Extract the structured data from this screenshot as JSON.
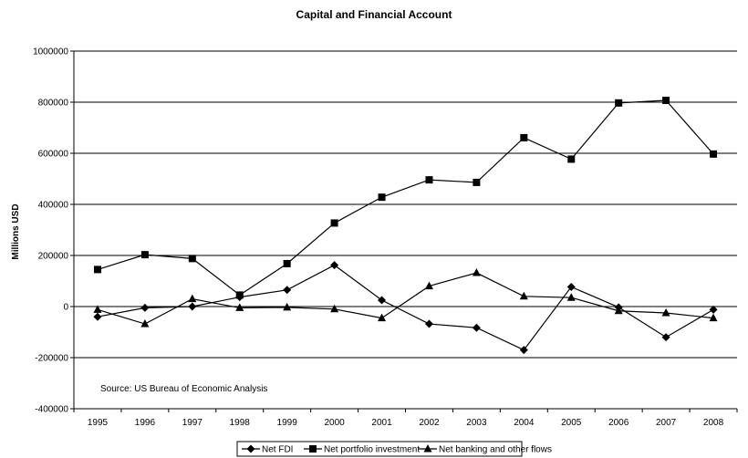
{
  "chart_data": {
    "type": "line",
    "title": "Capital and Financial Account",
    "xlabel": "",
    "ylabel": "Millions USD",
    "categories": [
      "1995",
      "1996",
      "1997",
      "1998",
      "1999",
      "2000",
      "2001",
      "2002",
      "2003",
      "2004",
      "2005",
      "2006",
      "2007",
      "2008"
    ],
    "ylim": [
      -400000,
      1000000
    ],
    "yticks": [
      -400000,
      -200000,
      0,
      200000,
      400000,
      600000,
      800000,
      1000000
    ],
    "ytick_labels": [
      "-400000",
      "-200000",
      "0",
      "200000",
      "400000",
      "600000",
      "800000",
      "1000000"
    ],
    "grid": "horizontal",
    "legend_position": "bottom",
    "annotation": "Source: US Bureau of Economic Analysis",
    "series": [
      {
        "name": "Net FDI",
        "marker": "diamond",
        "values": [
          -40000,
          -5000,
          0,
          37000,
          65000,
          162000,
          25000,
          -68000,
          -83000,
          -170000,
          77000,
          -3000,
          -120000,
          -12000
        ]
      },
      {
        "name": "Net portfolio investment",
        "marker": "square",
        "values": [
          145000,
          203000,
          188000,
          45000,
          168000,
          327000,
          428000,
          496000,
          486000,
          661000,
          577000,
          797000,
          807000,
          597000
        ]
      },
      {
        "name": "Net banking and other flows",
        "marker": "triangle",
        "values": [
          -12000,
          -68000,
          30000,
          -5000,
          -3000,
          -10000,
          -45000,
          80000,
          132000,
          40000,
          35000,
          -17000,
          -25000,
          -45000
        ]
      }
    ]
  }
}
